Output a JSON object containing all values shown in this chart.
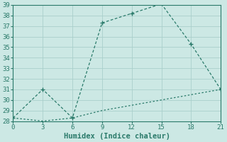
{
  "xlabel": "Humidex (Indice chaleur)",
  "x_upper": [
    0,
    3,
    6,
    9,
    12,
    15,
    18,
    21
  ],
  "y_upper": [
    28.3,
    31.0,
    28.3,
    37.3,
    38.2,
    39.1,
    35.3,
    31.0
  ],
  "x_lower": [
    0,
    3,
    6,
    9,
    12,
    15,
    18,
    21
  ],
  "y_lower": [
    28.3,
    28.0,
    28.3,
    29.0,
    29.5,
    30.0,
    30.5,
    31.0
  ],
  "line_color": "#2a7a6a",
  "bg_color": "#cce8e4",
  "grid_color": "#aacfcb",
  "xlim": [
    0,
    21
  ],
  "ylim": [
    28,
    39
  ],
  "xticks": [
    0,
    3,
    6,
    9,
    12,
    15,
    18,
    21
  ],
  "yticks": [
    28,
    29,
    30,
    31,
    32,
    33,
    34,
    35,
    36,
    37,
    38,
    39
  ],
  "xlabel_fontsize": 7.5,
  "tick_fontsize": 6.5
}
